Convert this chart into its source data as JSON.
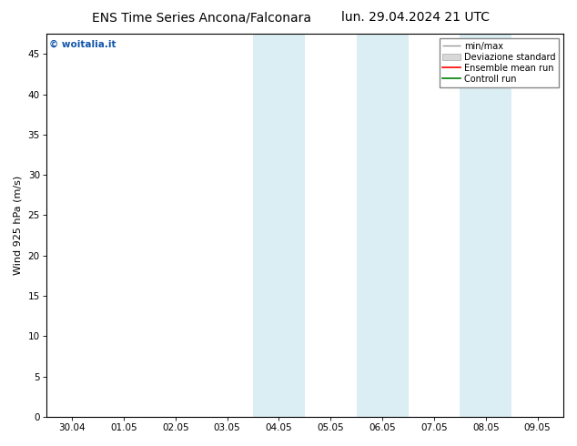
{
  "title_left": "ENS Time Series Ancona/Falconara",
  "title_right": "lun. 29.04.2024 21 UTC",
  "ylabel": "Wind 925 hPa (m/s)",
  "watermark": "© woitalia.it",
  "xticklabels": [
    "30.04",
    "01.05",
    "02.05",
    "03.05",
    "04.05",
    "05.05",
    "06.05",
    "07.05",
    "08.05",
    "09.05"
  ],
  "xtick_positions": [
    0,
    1,
    2,
    3,
    4,
    5,
    6,
    7,
    8,
    9
  ],
  "ylim": [
    0,
    47.5
  ],
  "yticks": [
    0,
    5,
    10,
    15,
    20,
    25,
    30,
    35,
    40,
    45
  ],
  "xlim": [
    -0.5,
    9.5
  ],
  "shaded_bands": [
    {
      "x_start": 3.5,
      "x_end": 4.5,
      "color": "#daeef3"
    },
    {
      "x_start": 5.5,
      "x_end": 6.5,
      "color": "#daeef3"
    },
    {
      "x_start": 7.5,
      "x_end": 8.5,
      "color": "#daeef3"
    }
  ],
  "legend_labels": [
    "min/max",
    "Deviazione standard",
    "Ensemble mean run",
    "Controll run"
  ],
  "legend_colors_line": [
    "#999999",
    "#bbbbbb",
    "red",
    "green"
  ],
  "bg_color": "#ffffff",
  "plot_bg_color": "#ffffff",
  "title_fontsize": 10,
  "axis_label_fontsize": 8,
  "tick_fontsize": 7.5,
  "watermark_color": "#1155aa",
  "border_color": "#000000",
  "spine_linewidth": 0.8
}
